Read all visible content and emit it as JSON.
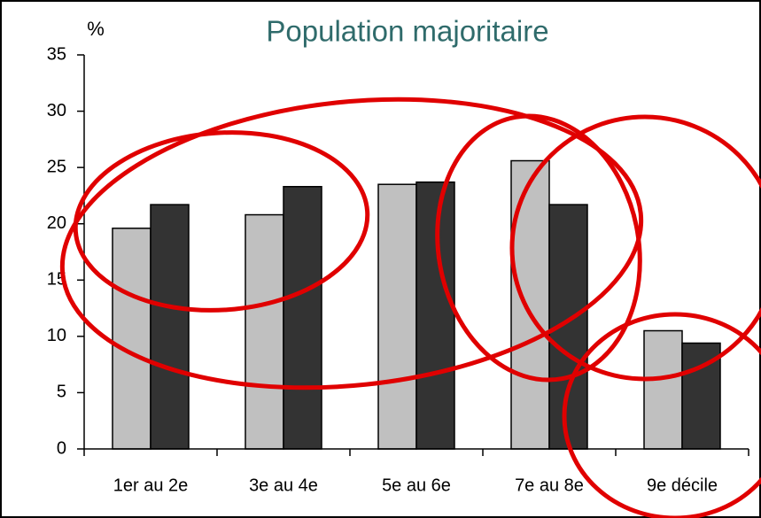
{
  "chart_data": {
    "type": "bar",
    "title": "Population majoritaire",
    "y_label": "%",
    "categories": [
      "1er au 2e",
      "3e au 4e",
      "5e au 6e",
      "7e au 8e",
      "9e décile"
    ],
    "series": [
      {
        "color": "#c0c0c0",
        "values": [
          19.6,
          20.8,
          23.5,
          25.6,
          10.5
        ]
      },
      {
        "color": "#333333",
        "values": [
          21.7,
          23.3,
          23.7,
          21.7,
          9.4
        ]
      }
    ],
    "ylim": [
      0,
      35
    ],
    "yticks": [
      0,
      5,
      10,
      15,
      20,
      25,
      30,
      35
    ]
  }
}
